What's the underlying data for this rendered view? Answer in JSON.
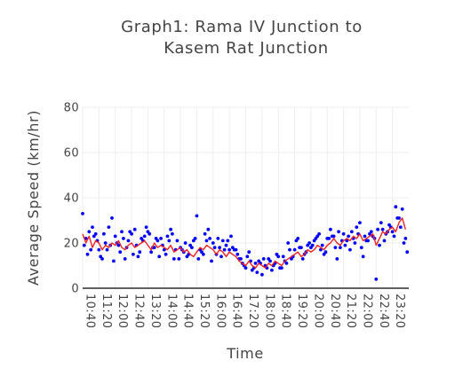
{
  "chart_data": {
    "type": "scatter",
    "title_lines": [
      "Graph1: Rama IV Junction to",
      "Kasem Rat Junction"
    ],
    "xlabel": "Time",
    "ylabel": "Average Speed (km/hr)",
    "ylim": [
      0,
      80
    ],
    "yticks": [
      0,
      20,
      40,
      60,
      80
    ],
    "xlim": [
      "10:40",
      "24:00"
    ],
    "xticks": [
      "10:40",
      "11:20",
      "12:00",
      "12:40",
      "13:20",
      "14:00",
      "14:40",
      "15:20",
      "16:00",
      "16:40",
      "17:20",
      "18:00",
      "18:40",
      "19:20",
      "20:00",
      "20:40",
      "21:20",
      "22:00",
      "22:40",
      "23:20"
    ],
    "grid": true,
    "colors": {
      "points": "#0000ff",
      "line": "#ee2222",
      "grid": "#eeeeee",
      "axis": "#000000"
    },
    "series": [
      {
        "type": "scatter",
        "x": [
          "10:40",
          "10:48",
          "10:56",
          "11:04",
          "11:12",
          "11:20",
          "11:28",
          "11:36",
          "11:44",
          "11:52",
          "12:00",
          "12:08",
          "12:16",
          "12:24",
          "12:32",
          "12:40",
          "12:48",
          "12:56",
          "13:04",
          "13:12",
          "13:20",
          "13:28",
          "13:36",
          "13:44",
          "13:52",
          "14:00",
          "14:08",
          "14:16",
          "14:24",
          "14:32",
          "14:40",
          "14:48",
          "14:56",
          "15:04",
          "15:12",
          "15:20",
          "15:28",
          "15:36",
          "15:44",
          "15:52",
          "16:00",
          "16:08",
          "16:16",
          "16:24",
          "16:32",
          "16:40",
          "16:48",
          "16:56",
          "17:04",
          "17:12",
          "17:20",
          "17:28",
          "17:36",
          "17:44",
          "17:52",
          "18:00",
          "18:08",
          "18:16",
          "18:24",
          "18:32",
          "18:40",
          "18:48",
          "18:56",
          "19:04",
          "19:12",
          "19:20",
          "19:28",
          "19:36",
          "19:44",
          "19:52",
          "20:00",
          "20:08",
          "20:16",
          "20:24",
          "20:32",
          "20:40",
          "20:48",
          "20:56",
          "21:04",
          "21:12",
          "21:20",
          "21:28",
          "21:36",
          "21:44",
          "21:52",
          "22:00",
          "22:08",
          "22:16",
          "22:24",
          "22:32",
          "22:40",
          "22:48",
          "22:56",
          "23:04",
          "23:12",
          "23:20",
          "23:28",
          "23:36",
          "23:44",
          "23:52",
          "10:44",
          "10:52",
          "11:00",
          "11:08",
          "11:16",
          "11:24",
          "11:32",
          "11:40",
          "11:48",
          "11:56",
          "12:04",
          "12:12",
          "12:20",
          "12:28",
          "12:36",
          "12:44",
          "12:52",
          "13:00",
          "13:08",
          "13:16",
          "13:24",
          "13:32",
          "13:40",
          "13:48",
          "13:56",
          "14:04",
          "14:12",
          "14:20",
          "14:28",
          "14:36",
          "14:44",
          "14:52",
          "15:00",
          "15:08",
          "15:16",
          "15:24",
          "15:32",
          "15:40",
          "15:48",
          "15:56",
          "16:04",
          "16:12",
          "16:20",
          "16:28",
          "16:36",
          "16:44",
          "16:52",
          "17:00",
          "17:08",
          "17:16",
          "17:24",
          "17:32",
          "17:40",
          "17:48",
          "17:56",
          "18:04",
          "18:12",
          "18:20",
          "18:28",
          "18:36",
          "18:44",
          "18:52",
          "19:00",
          "19:08",
          "19:16",
          "19:24",
          "19:32",
          "19:40",
          "19:48",
          "19:56",
          "20:04",
          "20:12",
          "20:20",
          "20:28",
          "20:36",
          "20:44",
          "20:52",
          "21:00",
          "21:08",
          "21:16",
          "21:24",
          "21:32",
          "21:40",
          "21:48",
          "21:56",
          "22:04",
          "22:12",
          "22:20",
          "22:28",
          "22:36",
          "22:44",
          "22:52",
          "23:00",
          "23:08",
          "23:16",
          "23:24",
          "23:32",
          "23:40",
          "23:48",
          "23:56"
        ],
        "y": [
          33,
          22,
          25,
          27,
          24,
          17,
          13,
          20,
          27,
          31,
          23,
          19,
          25,
          13,
          21,
          24,
          26,
          14,
          22,
          23,
          25,
          16,
          18,
          21,
          22,
          17,
          23,
          26,
          13,
          21,
          18,
          16,
          14,
          19,
          21,
          32,
          17,
          15,
          21,
          22,
          20,
          15,
          18,
          21,
          19,
          17,
          18,
          17,
          13,
          11,
          9,
          16,
          8,
          11,
          12,
          6,
          10,
          13,
          8,
          11,
          14,
          9,
          12,
          20,
          13,
          17,
          22,
          18,
          15,
          19,
          18,
          21,
          23,
          17,
          15,
          22,
          26,
          23,
          13,
          18,
          24,
          21,
          17,
          22,
          27,
          29,
          14,
          21,
          24,
          23,
          4,
          19,
          26,
          24,
          28,
          25,
          36,
          31,
          35,
          22,
          19,
          15,
          17,
          23,
          21,
          14,
          24,
          17,
          19,
          12,
          20,
          16,
          22,
          18,
          25,
          15,
          19,
          16,
          21,
          27,
          24,
          18,
          22,
          14,
          19,
          15,
          21,
          24,
          17,
          13,
          17,
          20,
          15,
          18,
          22,
          13,
          16,
          24,
          26,
          12,
          18,
          22,
          14,
          17,
          21,
          23,
          17,
          15,
          13,
          10,
          14,
          12,
          9,
          7,
          11,
          13,
          9,
          12,
          10,
          15,
          9,
          14,
          11,
          17,
          14,
          21,
          18,
          13,
          16,
          20,
          19,
          22,
          24,
          19,
          16,
          22,
          23,
          18,
          25,
          21,
          19,
          23,
          25,
          20,
          24,
          18,
          23,
          21,
          25,
          22,
          26,
          29,
          21,
          25,
          27,
          23,
          31,
          27,
          20,
          16
        ]
      },
      {
        "type": "line",
        "x": [
          "10:40",
          "10:48",
          "10:56",
          "11:04",
          "11:12",
          "11:20",
          "11:28",
          "11:36",
          "11:44",
          "11:52",
          "12:00",
          "12:08",
          "12:16",
          "12:24",
          "12:32",
          "12:40",
          "12:48",
          "12:56",
          "13:04",
          "13:12",
          "13:20",
          "13:28",
          "13:36",
          "13:44",
          "13:52",
          "14:00",
          "14:08",
          "14:16",
          "14:24",
          "14:32",
          "14:40",
          "14:48",
          "14:56",
          "15:04",
          "15:12",
          "15:20",
          "15:28",
          "15:36",
          "15:44",
          "15:52",
          "16:00",
          "16:08",
          "16:16",
          "16:24",
          "16:32",
          "16:40",
          "16:48",
          "16:56",
          "17:04",
          "17:12",
          "17:20",
          "17:28",
          "17:36",
          "17:44",
          "17:52",
          "18:00",
          "18:08",
          "18:16",
          "18:24",
          "18:32",
          "18:40",
          "18:48",
          "18:56",
          "19:04",
          "19:12",
          "19:20",
          "19:28",
          "19:36",
          "19:44",
          "19:52",
          "20:00",
          "20:08",
          "20:16",
          "20:24",
          "20:32",
          "20:40",
          "20:48",
          "20:56",
          "21:04",
          "21:12",
          "21:20",
          "21:28",
          "21:36",
          "21:44",
          "21:52",
          "22:00",
          "22:08",
          "22:16",
          "22:24",
          "22:32",
          "22:40",
          "22:48",
          "22:56",
          "23:04",
          "23:12",
          "23:20",
          "23:28",
          "23:36",
          "23:44",
          "23:52"
        ],
        "y": [
          24,
          20,
          23,
          18,
          21,
          20,
          17,
          19,
          18,
          20,
          19,
          21,
          18,
          17,
          19,
          20,
          18,
          19,
          20,
          21,
          19,
          17,
          20,
          18,
          19,
          18,
          17,
          19,
          16,
          17,
          18,
          16,
          17,
          15,
          14,
          16,
          18,
          17,
          19,
          18,
          17,
          15,
          17,
          16,
          14,
          16,
          15,
          14,
          12,
          11,
          10,
          12,
          10,
          9,
          11,
          10,
          9,
          11,
          10,
          12,
          11,
          10,
          12,
          13,
          14,
          15,
          16,
          14,
          15,
          17,
          16,
          17,
          19,
          18,
          17,
          19,
          20,
          22,
          20,
          19,
          21,
          22,
          21,
          23,
          22,
          24,
          21,
          22,
          23,
          24,
          19,
          22,
          25,
          24,
          26,
          27,
          25,
          29,
          31,
          26
        ]
      }
    ]
  }
}
